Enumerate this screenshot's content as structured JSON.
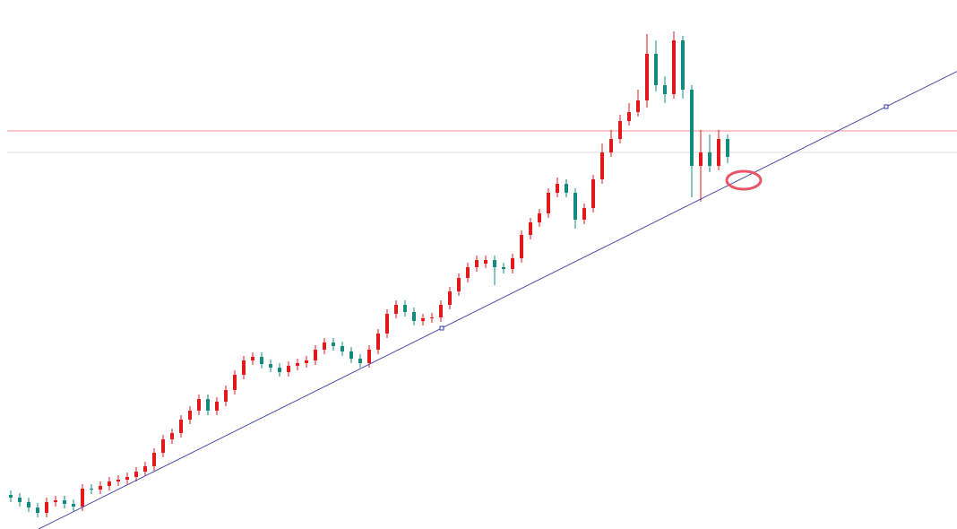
{
  "chart_data": {
    "type": "candlestick",
    "open": [
      38,
      35,
      30,
      24,
      18,
      30,
      32,
      28,
      25,
      45,
      44,
      48,
      53,
      55,
      58,
      64,
      70,
      85,
      100,
      107,
      122,
      132,
      145,
      132,
      142,
      155,
      172,
      188,
      192,
      184,
      180,
      175,
      182,
      185,
      188,
      200,
      208,
      204,
      198,
      190,
      185,
      200,
      218,
      240,
      250,
      242,
      232,
      235,
      236,
      250,
      265,
      280,
      292,
      296,
      300,
      292,
      290,
      302,
      328,
      342,
      352,
      375,
      385,
      375,
      345,
      358,
      390,
      420,
      435,
      455,
      465,
      478,
      530,
      495,
      485,
      545,
      490,
      405,
      420,
      405,
      435
    ],
    "high": [
      43,
      40,
      35,
      29,
      35,
      37,
      37,
      33,
      50,
      50,
      53,
      58,
      60,
      63,
      69,
      75,
      90,
      105,
      112,
      127,
      137,
      150,
      150,
      147,
      160,
      177,
      193,
      197,
      197,
      189,
      185,
      187,
      190,
      193,
      205,
      213,
      213,
      209,
      203,
      195,
      205,
      223,
      245,
      255,
      255,
      247,
      240,
      241,
      255,
      270,
      285,
      297,
      305,
      305,
      305,
      297,
      307,
      333,
      347,
      357,
      380,
      392,
      390,
      380,
      363,
      395,
      430,
      445,
      462,
      475,
      490,
      552,
      545,
      505,
      555,
      550,
      495,
      445,
      440,
      445,
      440
    ],
    "low": [
      30,
      25,
      19,
      13,
      13,
      25,
      23,
      20,
      20,
      39,
      39,
      43,
      48,
      50,
      53,
      59,
      65,
      80,
      95,
      102,
      117,
      127,
      127,
      127,
      137,
      150,
      167,
      183,
      179,
      175,
      170,
      170,
      177,
      180,
      183,
      195,
      199,
      193,
      185,
      180,
      180,
      195,
      213,
      235,
      237,
      227,
      227,
      230,
      231,
      245,
      260,
      275,
      287,
      291,
      272,
      285,
      285,
      297,
      323,
      337,
      347,
      370,
      370,
      335,
      340,
      353,
      385,
      415,
      430,
      450,
      460,
      470,
      488,
      475,
      480,
      480,
      370,
      365,
      398,
      400,
      408
    ],
    "close": [
      35,
      30,
      24,
      18,
      30,
      32,
      28,
      25,
      45,
      44,
      48,
      53,
      55,
      58,
      64,
      70,
      85,
      100,
      107,
      122,
      132,
      145,
      132,
      142,
      155,
      172,
      188,
      192,
      184,
      180,
      175,
      182,
      185,
      188,
      200,
      208,
      204,
      198,
      190,
      185,
      200,
      218,
      240,
      250,
      242,
      232,
      235,
      236,
      250,
      265,
      280,
      292,
      300,
      300,
      292,
      290,
      302,
      328,
      342,
      352,
      375,
      385,
      375,
      345,
      358,
      390,
      420,
      435,
      455,
      465,
      478,
      530,
      495,
      485,
      545,
      490,
      405,
      420,
      405,
      435,
      415
    ],
    "up_color": "#e3191c",
    "down_color": "#138a7e",
    "xlim": [
      -1.2,
      105.6
    ],
    "ylim": [
      0,
      590
    ],
    "levels": [
      {
        "value": 444,
        "color": "#f4a3a3"
      },
      {
        "value": 420,
        "color": "#e2e2e2"
      }
    ],
    "trendline": {
      "points": [
        [
          48.1,
          224
        ],
        [
          97.7,
          471
        ]
      ],
      "color": "#3a3aa8"
    },
    "marker": {
      "x": 81.8,
      "y": 389,
      "color": "#ec5467"
    }
  }
}
